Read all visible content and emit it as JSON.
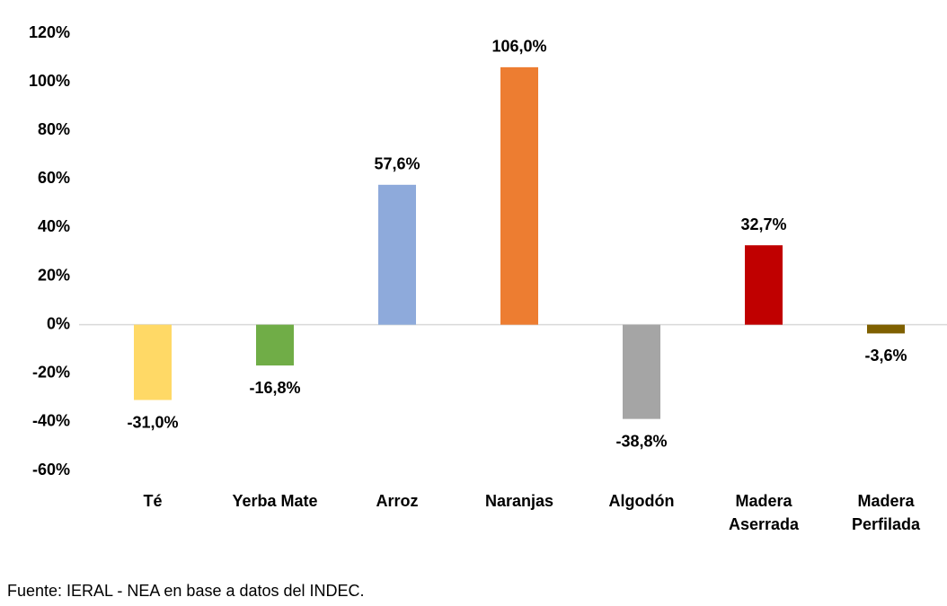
{
  "chart_data": {
    "type": "bar",
    "categories": [
      "Té",
      "Yerba Mate",
      "Arroz",
      "Naranjas",
      "Algodón",
      "Madera Aserrada",
      "Madera Perfilada"
    ],
    "values": [
      -31.0,
      -16.8,
      57.6,
      106.0,
      -38.8,
      32.7,
      -3.6
    ],
    "value_labels": [
      "-31,0%",
      "-16,8%",
      "57,6%",
      "106,0%",
      "-38,8%",
      "32,7%",
      "-3,6%"
    ],
    "colors": [
      "#FFD966",
      "#70AD47",
      "#8EAADB",
      "#ED7D31",
      "#A5A5A5",
      "#C00000",
      "#7F6000"
    ],
    "ylim": [
      -60,
      120
    ],
    "yticks": [
      {
        "value": -60,
        "label": "-60%"
      },
      {
        "value": -40,
        "label": "-40%"
      },
      {
        "value": -20,
        "label": "-20%"
      },
      {
        "value": 0,
        "label": "0%"
      },
      {
        "value": 20,
        "label": "20%"
      },
      {
        "value": 40,
        "label": "40%"
      },
      {
        "value": 60,
        "label": "60%"
      },
      {
        "value": 80,
        "label": "80%"
      },
      {
        "value": 100,
        "label": "100%"
      },
      {
        "value": 120,
        "label": "120%"
      }
    ],
    "grid": false,
    "source": "Fuente: IERAL - NEA en base a datos del INDEC."
  }
}
